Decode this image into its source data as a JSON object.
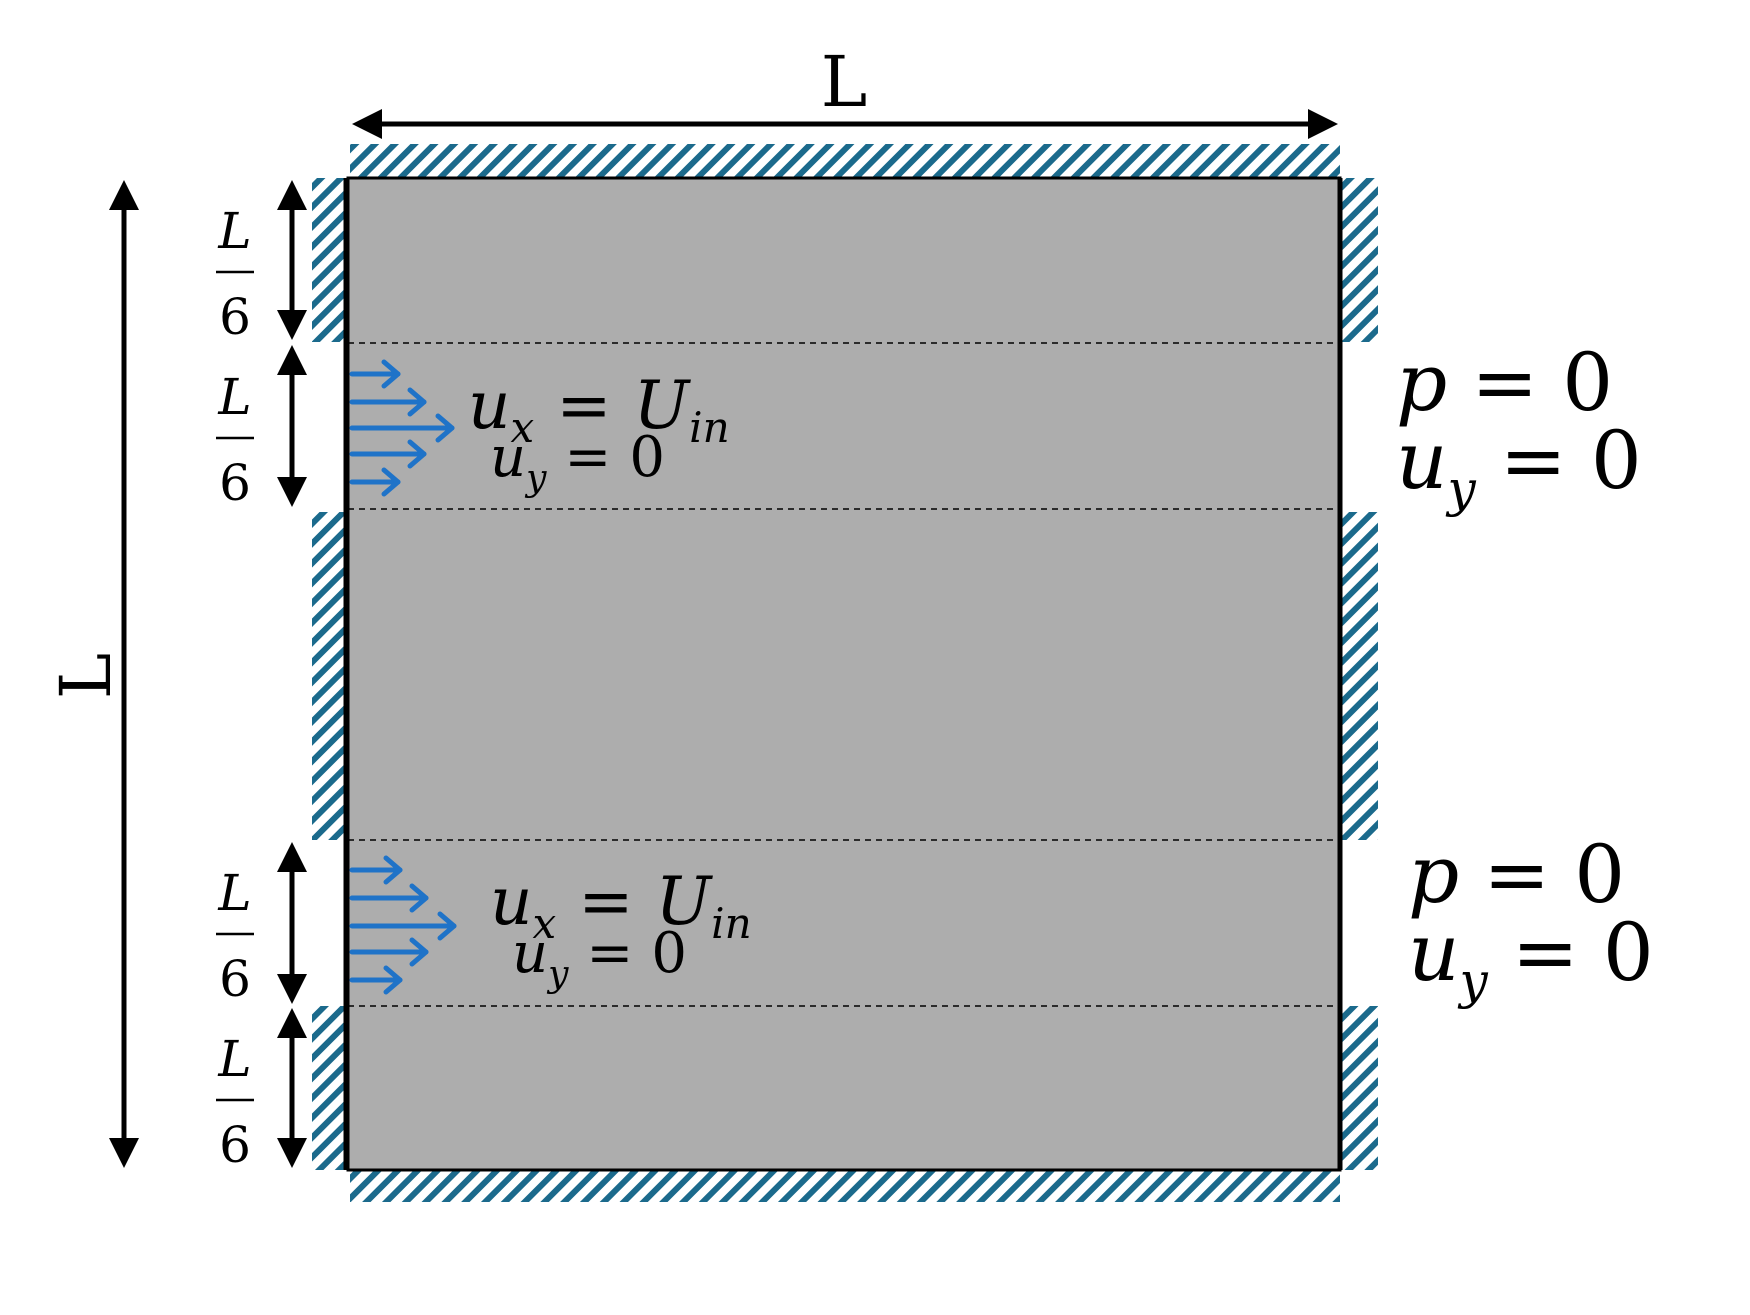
{
  "colors": {
    "domain_fill": "#adadad",
    "wall_hatch": "#1b6a8c",
    "inlet_arrow": "#1f73c8",
    "line": "#000000"
  },
  "dimensions": {
    "width_label": "L",
    "height_label": "L",
    "segment_numerator": "L",
    "segment_denominator": "6"
  },
  "inlets": [
    {
      "ux_symbol": "u",
      "ux_subscript": "x",
      "ux_equals": "=",
      "ux_value": "U",
      "ux_value_subscript": "in",
      "uy_symbol": "u",
      "uy_subscript": "y",
      "uy_equals": "=",
      "uy_value": "0"
    },
    {
      "ux_symbol": "u",
      "ux_subscript": "x",
      "ux_equals": "=",
      "ux_value": "U",
      "ux_value_subscript": "in",
      "uy_symbol": "u",
      "uy_subscript": "y",
      "uy_equals": "=",
      "uy_value": "0"
    }
  ],
  "outlets": [
    {
      "p_symbol": "p",
      "p_equals": "=",
      "p_value": "0",
      "uy_symbol": "u",
      "uy_subscript": "y",
      "uy_equals": "=",
      "uy_value": "0"
    },
    {
      "p_symbol": "p",
      "p_equals": "=",
      "p_value": "0",
      "uy_symbol": "u",
      "uy_subscript": "y",
      "uy_equals": "=",
      "uy_value": "0"
    }
  ],
  "icons": {
    "wall": "hatched-wall-icon",
    "inflow": "inflow-arrow-icon",
    "dimension": "double-headed-arrow-icon"
  }
}
